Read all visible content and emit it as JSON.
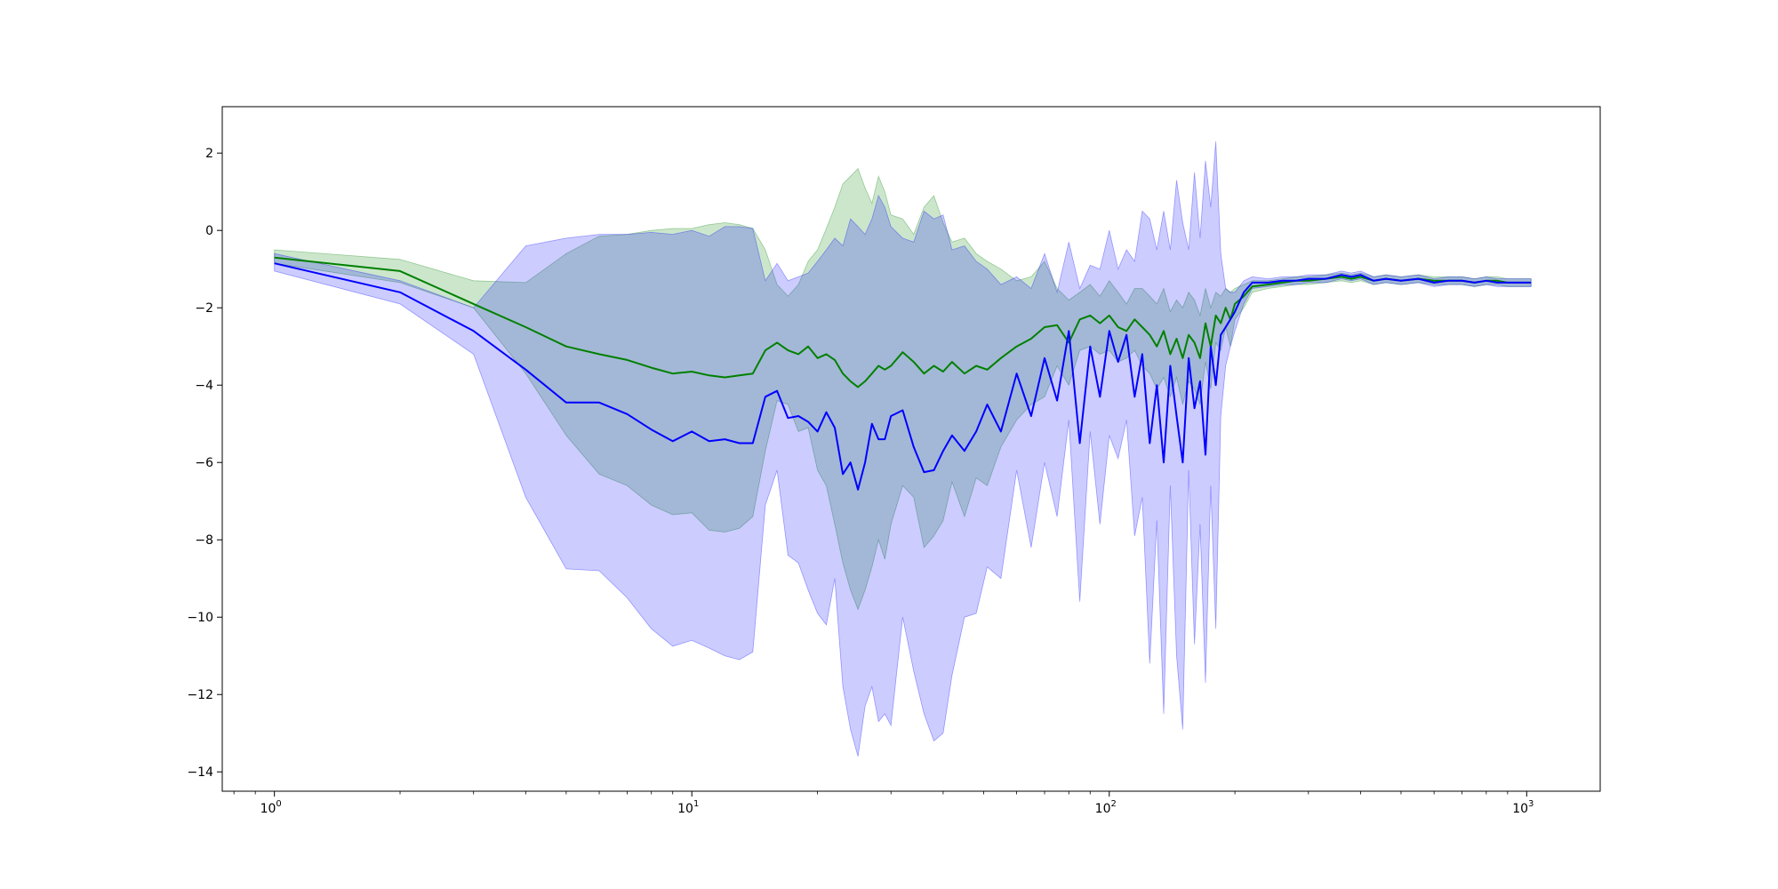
{
  "chart_data": {
    "type": "line",
    "title": "",
    "xlabel": "",
    "ylabel": "",
    "xscale": "log",
    "xlim": [
      0.75,
      1500
    ],
    "ylim": [
      -14.5,
      3.2
    ],
    "grid": false,
    "legend": "none",
    "x_ticks": [
      {
        "value": 1,
        "base": "10",
        "exp": "0"
      },
      {
        "value": 10,
        "base": "10",
        "exp": "1"
      },
      {
        "value": 100,
        "base": "10",
        "exp": "2"
      },
      {
        "value": 1000,
        "base": "10",
        "exp": "3"
      }
    ],
    "y_ticks": [
      2,
      0,
      -2,
      -4,
      -6,
      -8,
      -10,
      -12,
      -14
    ],
    "series": [
      {
        "color": "#008000",
        "band_color": "#008000",
        "band_opacity": 0.2,
        "points": [
          [
            1,
            -0.7,
            -0.5,
            -0.85
          ],
          [
            2,
            -1.05,
            -0.75,
            -1.35
          ],
          [
            3,
            -1.9,
            -1.3,
            -2.0
          ],
          [
            4,
            -2.5,
            -1.35,
            -3.7
          ],
          [
            5,
            -3.0,
            -0.6,
            -5.3
          ],
          [
            6,
            -3.2,
            -0.15,
            -6.3
          ],
          [
            7,
            -3.35,
            -0.1,
            -6.6
          ],
          [
            8,
            -3.55,
            0.0,
            -7.1
          ],
          [
            9,
            -3.7,
            0.05,
            -7.35
          ],
          [
            10,
            -3.65,
            0.05,
            -7.3
          ],
          [
            11,
            -3.75,
            0.15,
            -7.75
          ],
          [
            12,
            -3.8,
            0.2,
            -7.8
          ],
          [
            13,
            -3.75,
            0.15,
            -7.7
          ],
          [
            14,
            -3.7,
            0.05,
            -7.4
          ],
          [
            15,
            -3.1,
            -0.5,
            -5.7
          ],
          [
            16,
            -2.9,
            -1.4,
            -4.4
          ],
          [
            17,
            -3.1,
            -1.7,
            -4.5
          ],
          [
            18,
            -3.2,
            -1.4,
            -5.2
          ],
          [
            19,
            -3.0,
            -0.8,
            -5.1
          ],
          [
            20,
            -3.3,
            -0.5,
            -6.2
          ],
          [
            21,
            -3.2,
            0.05,
            -6.6
          ],
          [
            22,
            -3.35,
            0.6,
            -7.6
          ],
          [
            23,
            -3.7,
            1.2,
            -8.6
          ],
          [
            24,
            -3.9,
            1.4,
            -9.3
          ],
          [
            25,
            -4.05,
            1.6,
            -9.8
          ],
          [
            26,
            -3.9,
            1.1,
            -9.3
          ],
          [
            27,
            -3.7,
            0.7,
            -8.7
          ],
          [
            28,
            -3.5,
            1.4,
            -8.0
          ],
          [
            29,
            -3.6,
            1.0,
            -8.5
          ],
          [
            30,
            -3.5,
            0.4,
            -7.6
          ],
          [
            32,
            -3.15,
            0.3,
            -6.6
          ],
          [
            34,
            -3.4,
            -0.1,
            -6.9
          ],
          [
            36,
            -3.7,
            0.6,
            -8.2
          ],
          [
            38,
            -3.5,
            0.9,
            -7.9
          ],
          [
            40,
            -3.65,
            0.2,
            -7.5
          ],
          [
            42,
            -3.4,
            -0.3,
            -6.5
          ],
          [
            45,
            -3.7,
            -0.2,
            -7.4
          ],
          [
            48,
            -3.5,
            -0.6,
            -6.4
          ],
          [
            51,
            -3.6,
            -0.8,
            -6.6
          ],
          [
            55,
            -3.3,
            -1.0,
            -5.6
          ],
          [
            60,
            -3.0,
            -1.3,
            -4.9
          ],
          [
            65,
            -2.8,
            -1.2,
            -4.5
          ],
          [
            70,
            -2.5,
            -0.8,
            -4.3
          ],
          [
            75,
            -2.45,
            -1.5,
            -3.5
          ],
          [
            80,
            -2.9,
            -1.8,
            -4.0
          ],
          [
            85,
            -2.3,
            -1.6,
            -3.1
          ],
          [
            90,
            -2.2,
            -1.4,
            -3.0
          ],
          [
            95,
            -2.4,
            -1.7,
            -3.2
          ],
          [
            100,
            -2.2,
            -1.3,
            -3.1
          ],
          [
            105,
            -2.5,
            -1.6,
            -3.4
          ],
          [
            110,
            -2.6,
            -1.9,
            -3.3
          ],
          [
            115,
            -2.3,
            -1.5,
            -3.1
          ],
          [
            120,
            -2.5,
            -1.5,
            -3.5
          ],
          [
            125,
            -2.7,
            -1.7,
            -3.7
          ],
          [
            130,
            -3.0,
            -1.9,
            -4.1
          ],
          [
            135,
            -2.6,
            -1.5,
            -3.8
          ],
          [
            140,
            -3.2,
            -2.1,
            -4.3
          ],
          [
            145,
            -2.8,
            -1.8,
            -3.8
          ],
          [
            150,
            -3.3,
            -2.0,
            -4.5
          ],
          [
            155,
            -2.7,
            -1.6,
            -3.9
          ],
          [
            160,
            -2.9,
            -1.8,
            -4.1
          ],
          [
            165,
            -3.3,
            -2.2,
            -4.5
          ],
          [
            170,
            -2.4,
            -1.5,
            -3.4
          ],
          [
            175,
            -3.0,
            -2.0,
            -4.1
          ],
          [
            180,
            -2.2,
            -1.6,
            -2.9
          ],
          [
            185,
            -2.4,
            -1.7,
            -3.1
          ],
          [
            190,
            -2.0,
            -1.5,
            -2.5
          ],
          [
            195,
            -2.3,
            -1.6,
            -3.0
          ],
          [
            200,
            -1.9,
            -1.5,
            -2.3
          ],
          [
            210,
            -1.7,
            -1.4,
            -2.0
          ],
          [
            220,
            -1.45,
            -1.3,
            -1.6
          ],
          [
            240,
            -1.4,
            -1.3,
            -1.5
          ],
          [
            260,
            -1.35,
            -1.25,
            -1.45
          ],
          [
            280,
            -1.3,
            -1.2,
            -1.4
          ],
          [
            300,
            -1.3,
            -1.2,
            -1.4
          ],
          [
            330,
            -1.25,
            -1.15,
            -1.35
          ],
          [
            360,
            -1.2,
            -1.1,
            -1.3
          ],
          [
            380,
            -1.25,
            -1.15,
            -1.35
          ],
          [
            400,
            -1.2,
            -1.1,
            -1.3
          ],
          [
            430,
            -1.3,
            -1.2,
            -1.4
          ],
          [
            460,
            -1.25,
            -1.15,
            -1.35
          ],
          [
            500,
            -1.3,
            -1.2,
            -1.4
          ],
          [
            550,
            -1.25,
            -1.15,
            -1.35
          ],
          [
            600,
            -1.3,
            -1.2,
            -1.4
          ],
          [
            650,
            -1.3,
            -1.2,
            -1.4
          ],
          [
            700,
            -1.3,
            -1.2,
            -1.4
          ],
          [
            750,
            -1.35,
            -1.25,
            -1.45
          ],
          [
            800,
            -1.3,
            -1.2,
            -1.4
          ],
          [
            850,
            -1.3,
            -1.2,
            -1.4
          ],
          [
            900,
            -1.35,
            -1.25,
            -1.45
          ],
          [
            950,
            -1.35,
            -1.25,
            -1.45
          ],
          [
            1000,
            -1.35,
            -1.25,
            -1.45
          ],
          [
            1024,
            -1.35,
            -1.25,
            -1.45
          ]
        ]
      },
      {
        "color": "#0000ff",
        "band_color": "#0000ff",
        "band_opacity": 0.2,
        "points": [
          [
            1,
            -0.85,
            -0.6,
            -1.05
          ],
          [
            2,
            -1.6,
            -1.3,
            -1.9
          ],
          [
            3,
            -2.6,
            -2.0,
            -3.2
          ],
          [
            4,
            -3.6,
            -0.4,
            -6.9
          ],
          [
            5,
            -4.45,
            -0.2,
            -8.75
          ],
          [
            6,
            -4.45,
            -0.1,
            -8.8
          ],
          [
            7,
            -4.75,
            -0.1,
            -9.5
          ],
          [
            8,
            -5.15,
            -0.05,
            -10.3
          ],
          [
            9,
            -5.45,
            -0.1,
            -10.75
          ],
          [
            10,
            -5.2,
            0.0,
            -10.6
          ],
          [
            11,
            -5.45,
            -0.15,
            -10.8
          ],
          [
            12,
            -5.4,
            0.1,
            -11.0
          ],
          [
            13,
            -5.5,
            0.1,
            -11.1
          ],
          [
            14,
            -5.5,
            0.05,
            -10.9
          ],
          [
            15,
            -4.3,
            -1.3,
            -7.1
          ],
          [
            16,
            -4.15,
            -0.85,
            -6.2
          ],
          [
            17,
            -4.85,
            -1.3,
            -8.4
          ],
          [
            18,
            -4.8,
            -1.2,
            -8.6
          ],
          [
            19,
            -4.95,
            -1.1,
            -9.3
          ],
          [
            20,
            -5.2,
            -0.8,
            -9.9
          ],
          [
            21,
            -4.7,
            -0.5,
            -10.2
          ],
          [
            22,
            -5.1,
            -0.2,
            -9.0
          ],
          [
            23,
            -6.3,
            -0.4,
            -11.8
          ],
          [
            24,
            -6.0,
            0.3,
            -12.9
          ],
          [
            25,
            -6.7,
            0.1,
            -13.6
          ],
          [
            26,
            -6.0,
            -0.1,
            -12.3
          ],
          [
            27,
            -5.0,
            0.3,
            -11.8
          ],
          [
            28,
            -5.4,
            0.9,
            -12.7
          ],
          [
            29,
            -5.4,
            0.6,
            -12.5
          ],
          [
            30,
            -4.8,
            0.1,
            -12.8
          ],
          [
            32,
            -4.65,
            -0.2,
            -10.0
          ],
          [
            34,
            -5.6,
            -0.3,
            -11.4
          ],
          [
            36,
            -6.25,
            0.5,
            -12.5
          ],
          [
            38,
            -6.2,
            0.3,
            -13.2
          ],
          [
            40,
            -5.7,
            0.4,
            -13.0
          ],
          [
            42,
            -5.3,
            -0.5,
            -11.5
          ],
          [
            45,
            -5.7,
            -0.4,
            -10.0
          ],
          [
            48,
            -5.2,
            -0.8,
            -9.9
          ],
          [
            51,
            -4.5,
            -1.0,
            -8.7
          ],
          [
            55,
            -5.2,
            -1.4,
            -9.0
          ],
          [
            60,
            -3.7,
            -1.2,
            -6.2
          ],
          [
            65,
            -4.8,
            -1.5,
            -8.2
          ],
          [
            70,
            -3.3,
            -0.6,
            -6.0
          ],
          [
            75,
            -4.4,
            -1.6,
            -7.4
          ],
          [
            80,
            -2.6,
            -0.3,
            -4.9
          ],
          [
            85,
            -5.5,
            -1.5,
            -9.6
          ],
          [
            90,
            -3.0,
            -0.9,
            -5.2
          ],
          [
            95,
            -4.3,
            -1.0,
            -7.6
          ],
          [
            100,
            -2.6,
            0.0,
            -5.3
          ],
          [
            105,
            -3.4,
            -1.0,
            -5.9
          ],
          [
            110,
            -2.7,
            -0.5,
            -4.9
          ],
          [
            115,
            -4.3,
            -0.8,
            -7.9
          ],
          [
            120,
            -3.2,
            0.5,
            -6.9
          ],
          [
            125,
            -5.5,
            0.3,
            -11.2
          ],
          [
            130,
            -4.0,
            -0.5,
            -7.5
          ],
          [
            135,
            -6.0,
            0.5,
            -12.5
          ],
          [
            140,
            -3.5,
            -0.5,
            -6.6
          ],
          [
            145,
            -4.8,
            1.3,
            -11.0
          ],
          [
            150,
            -6.0,
            0.2,
            -12.9
          ],
          [
            155,
            -3.3,
            -0.5,
            -6.2
          ],
          [
            160,
            -4.6,
            1.5,
            -10.7
          ],
          [
            165,
            -3.9,
            -0.2,
            -7.6
          ],
          [
            170,
            -5.8,
            1.8,
            -11.7
          ],
          [
            175,
            -3.0,
            0.6,
            -6.6
          ],
          [
            180,
            -4.0,
            2.3,
            -10.3
          ],
          [
            185,
            -2.7,
            -0.6,
            -4.8
          ],
          [
            190,
            -2.5,
            -1.5,
            -3.5
          ],
          [
            195,
            -2.3,
            -1.6,
            -3.0
          ],
          [
            200,
            -2.1,
            -1.6,
            -2.6
          ],
          [
            210,
            -1.6,
            -1.3,
            -1.9
          ],
          [
            220,
            -1.35,
            -1.2,
            -1.5
          ],
          [
            240,
            -1.35,
            -1.25,
            -1.45
          ],
          [
            260,
            -1.3,
            -1.2,
            -1.4
          ],
          [
            280,
            -1.3,
            -1.2,
            -1.4
          ],
          [
            300,
            -1.25,
            -1.15,
            -1.35
          ],
          [
            330,
            -1.25,
            -1.15,
            -1.35
          ],
          [
            360,
            -1.15,
            -1.05,
            -1.25
          ],
          [
            380,
            -1.2,
            -1.1,
            -1.3
          ],
          [
            400,
            -1.15,
            -1.05,
            -1.25
          ],
          [
            430,
            -1.3,
            -1.2,
            -1.4
          ],
          [
            460,
            -1.25,
            -1.15,
            -1.35
          ],
          [
            500,
            -1.3,
            -1.2,
            -1.4
          ],
          [
            550,
            -1.25,
            -1.15,
            -1.35
          ],
          [
            600,
            -1.35,
            -1.25,
            -1.45
          ],
          [
            650,
            -1.3,
            -1.2,
            -1.4
          ],
          [
            700,
            -1.3,
            -1.2,
            -1.4
          ],
          [
            750,
            -1.35,
            -1.25,
            -1.45
          ],
          [
            800,
            -1.3,
            -1.2,
            -1.4
          ],
          [
            850,
            -1.35,
            -1.25,
            -1.45
          ],
          [
            900,
            -1.35,
            -1.25,
            -1.45
          ],
          [
            950,
            -1.35,
            -1.25,
            -1.45
          ],
          [
            1000,
            -1.35,
            -1.25,
            -1.45
          ],
          [
            1024,
            -1.35,
            -1.25,
            -1.45
          ]
        ]
      }
    ]
  }
}
